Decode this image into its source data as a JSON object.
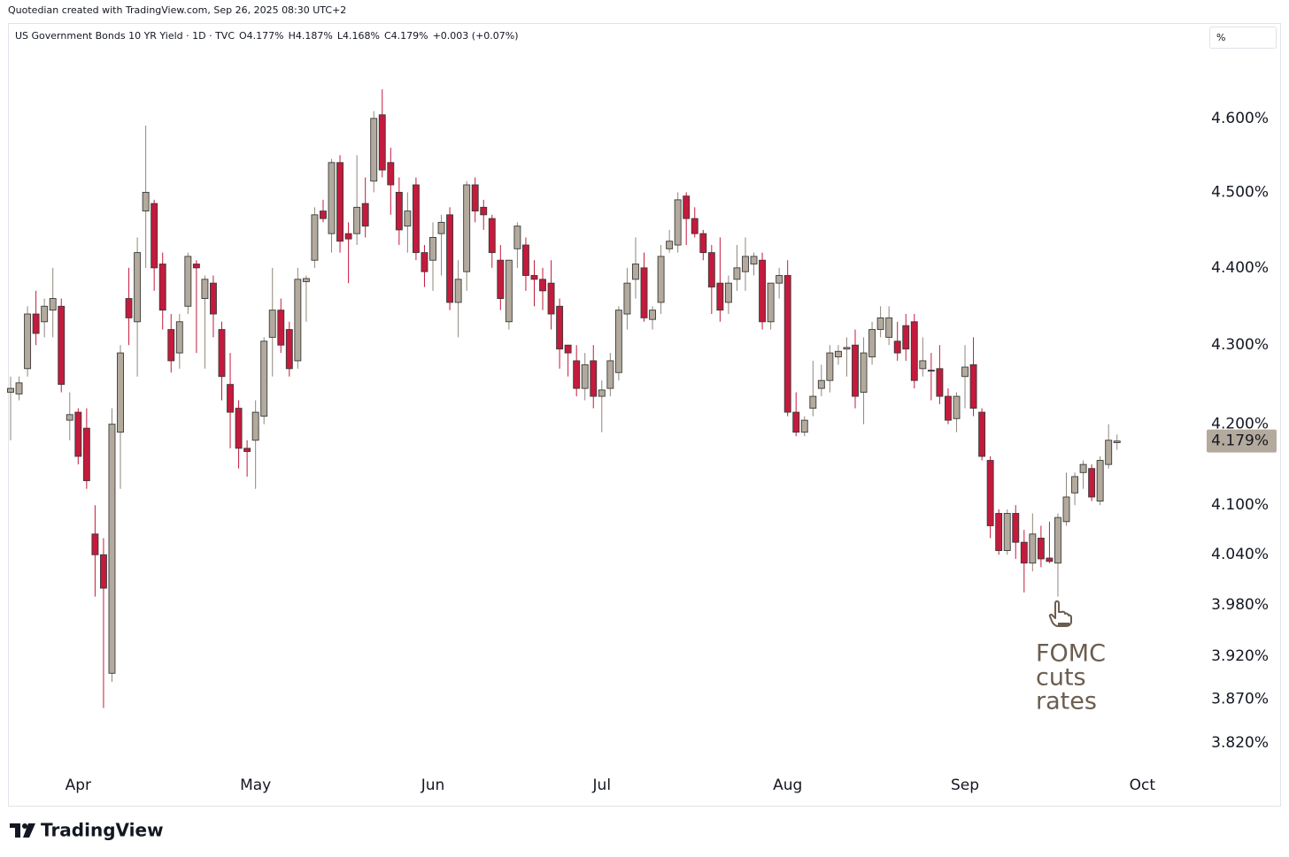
{
  "chart_data": {
    "type": "candlestick",
    "caption": "Quotedian created with TradingView.com, Sep 26, 2025 08:30 UTC+2",
    "title": "US Government Bonds 10 YR Yield · 1D · TVC",
    "legend": [
      {
        "key": "O",
        "text": "4.177%"
      },
      {
        "key": "H",
        "text": "4.187%"
      },
      {
        "key": "L",
        "text": "4.168%"
      },
      {
        "key": "C",
        "text": "4.179%"
      }
    ],
    "change": "+0.003 (+0.07%)",
    "unit": "%",
    "brand": "TradingView",
    "annotation": [
      "FOMC",
      "cuts",
      "rates"
    ],
    "y_scale": "log",
    "grid": false,
    "up_color": "#b3aa9d",
    "down_color": "#c41a3c",
    "border_color": "#3a3a3a",
    "ylim": [
      3.79,
      4.73
    ],
    "yticks": [
      {
        "value": 3.82,
        "label": "3.820%"
      },
      {
        "value": 3.87,
        "label": "3.870%"
      },
      {
        "value": 3.92,
        "label": "3.920%"
      },
      {
        "value": 3.98,
        "label": "3.980%"
      },
      {
        "value": 4.04,
        "label": "4.040%"
      },
      {
        "value": 4.1,
        "label": "4.100%"
      },
      {
        "value": 4.2,
        "label": "4.200%"
      },
      {
        "value": 4.3,
        "label": "4.300%"
      },
      {
        "value": 4.4,
        "label": "4.400%"
      },
      {
        "value": 4.5,
        "label": "4.500%"
      },
      {
        "value": 4.6,
        "label": "4.600%"
      }
    ],
    "last_price": {
      "value": 4.179,
      "label": "4.179%"
    },
    "categories": [
      null,
      null,
      null,
      null,
      null,
      null,
      null,
      null,
      "Apr",
      null,
      null,
      null,
      null,
      null,
      null,
      null,
      null,
      null,
      null,
      null,
      null,
      null,
      null,
      null,
      null,
      null,
      null,
      null,
      null,
      "May",
      null,
      null,
      null,
      null,
      null,
      null,
      null,
      null,
      null,
      null,
      null,
      null,
      null,
      null,
      null,
      null,
      null,
      null,
      null,
      null,
      "Jun",
      null,
      null,
      null,
      null,
      null,
      null,
      null,
      null,
      null,
      null,
      null,
      null,
      null,
      null,
      null,
      null,
      null,
      null,
      null,
      "Jul",
      null,
      null,
      null,
      null,
      null,
      null,
      null,
      null,
      null,
      null,
      null,
      null,
      null,
      null,
      null,
      null,
      null,
      null,
      null,
      null,
      null,
      "Aug",
      null,
      null,
      null,
      null,
      null,
      null,
      null,
      null,
      null,
      null,
      null,
      null,
      null,
      null,
      null,
      null,
      null,
      null,
      null,
      null,
      "Sep",
      null,
      null,
      null,
      null,
      null,
      null,
      null,
      null,
      null,
      null,
      null,
      null,
      null,
      null,
      null,
      null,
      null,
      null,
      null,
      null,
      "Oct"
    ],
    "open": [
      4.24,
      4.238,
      4.27,
      4.34,
      4.33,
      4.345,
      4.35,
      4.205,
      4.215,
      4.195,
      4.065,
      4.04,
      3.9,
      4.19,
      4.36,
      4.33,
      4.475,
      4.485,
      4.405,
      4.32,
      4.29,
      4.35,
      4.405,
      4.36,
      4.38,
      4.32,
      4.25,
      4.22,
      4.17,
      4.18,
      4.21,
      4.31,
      4.345,
      4.32,
      4.28,
      4.382,
      4.41,
      4.475,
      4.445,
      4.54,
      4.445,
      4.445,
      4.485,
      4.515,
      4.605,
      4.54,
      4.5,
      4.455,
      4.51,
      4.42,
      4.41,
      4.445,
      4.47,
      4.355,
      4.395,
      4.51,
      4.48,
      4.465,
      4.41,
      4.33,
      4.425,
      4.43,
      4.39,
      4.385,
      4.38,
      4.35,
      4.3,
      4.28,
      4.245,
      4.28,
      4.235,
      4.245,
      4.265,
      4.34,
      4.385,
      4.4,
      4.333,
      4.355,
      4.425,
      4.43,
      4.495,
      4.465,
      4.445,
      4.42,
      4.38,
      4.355,
      4.385,
      4.395,
      4.405,
      4.41,
      4.33,
      4.38,
      4.39,
      4.215,
      4.19,
      4.22,
      4.245,
      4.255,
      4.285,
      4.295,
      4.3,
      4.24,
      4.285,
      4.32,
      4.31,
      4.305,
      4.325,
      4.33,
      4.27,
      4.268,
      4.27,
      4.235,
      4.207,
      4.26,
      4.275,
      4.215,
      4.155,
      4.09,
      4.045,
      4.09,
      4.055,
      4.03,
      4.06,
      4.036,
      4.03,
      4.08,
      4.115,
      4.14,
      4.145,
      4.105,
      4.15,
      4.177,
      null,
      null,
      null
    ],
    "high": [
      4.26,
      4.26,
      4.35,
      4.37,
      4.36,
      4.4,
      4.36,
      4.24,
      4.22,
      4.22,
      4.1,
      4.06,
      4.22,
      4.3,
      4.4,
      4.44,
      4.59,
      4.49,
      4.42,
      4.34,
      4.34,
      4.42,
      4.41,
      4.39,
      4.39,
      4.33,
      4.29,
      4.23,
      4.18,
      4.23,
      4.31,
      4.4,
      4.36,
      4.33,
      4.4,
      4.39,
      4.48,
      4.49,
      4.545,
      4.55,
      4.46,
      4.55,
      4.52,
      4.61,
      4.64,
      4.56,
      4.52,
      4.5,
      4.52,
      4.43,
      4.46,
      4.47,
      4.48,
      4.41,
      4.515,
      4.52,
      4.49,
      4.47,
      4.43,
      4.41,
      4.46,
      4.44,
      4.41,
      4.4,
      4.41,
      4.36,
      4.3,
      4.3,
      4.29,
      4.3,
      4.255,
      4.29,
      4.35,
      4.4,
      4.44,
      4.42,
      4.35,
      4.43,
      4.45,
      4.5,
      4.5,
      4.48,
      4.45,
      4.43,
      4.44,
      4.39,
      4.43,
      4.44,
      4.42,
      4.42,
      4.38,
      4.4,
      4.41,
      4.24,
      4.21,
      4.28,
      4.275,
      4.3,
      4.3,
      4.31,
      4.32,
      4.31,
      4.33,
      4.35,
      4.35,
      4.33,
      4.34,
      4.34,
      4.31,
      4.29,
      4.3,
      4.245,
      4.24,
      4.3,
      4.31,
      4.22,
      4.16,
      4.095,
      4.095,
      4.1,
      4.07,
      4.09,
      4.075,
      4.08,
      4.09,
      4.14,
      4.14,
      4.155,
      4.15,
      4.16,
      4.2,
      4.187,
      null,
      null,
      null
    ],
    "low": [
      4.18,
      4.23,
      4.26,
      4.3,
      4.31,
      4.31,
      4.24,
      4.18,
      4.15,
      4.12,
      3.99,
      3.86,
      3.89,
      4.12,
      4.3,
      4.26,
      4.4,
      4.37,
      4.32,
      4.265,
      4.27,
      4.34,
      4.29,
      4.27,
      4.31,
      4.23,
      4.17,
      4.145,
      4.135,
      4.12,
      4.2,
      4.26,
      4.29,
      4.26,
      4.27,
      4.33,
      4.4,
      4.46,
      4.42,
      4.42,
      4.38,
      4.43,
      4.44,
      4.5,
      4.52,
      4.47,
      4.43,
      4.42,
      4.41,
      4.375,
      4.37,
      4.39,
      4.345,
      4.31,
      4.37,
      4.46,
      4.45,
      4.4,
      4.345,
      4.32,
      4.4,
      4.37,
      4.35,
      4.345,
      4.32,
      4.27,
      4.26,
      4.235,
      4.23,
      4.22,
      4.19,
      4.235,
      4.255,
      4.32,
      4.36,
      4.33,
      4.32,
      4.34,
      4.42,
      4.42,
      4.43,
      4.44,
      4.41,
      4.34,
      4.33,
      4.34,
      4.37,
      4.37,
      4.39,
      4.32,
      4.32,
      4.36,
      4.21,
      4.185,
      4.185,
      4.21,
      4.235,
      4.24,
      4.275,
      4.26,
      4.22,
      4.2,
      4.275,
      4.31,
      4.3,
      4.28,
      4.28,
      4.245,
      4.26,
      4.23,
      4.225,
      4.2,
      4.19,
      4.22,
      4.21,
      4.155,
      4.06,
      4.04,
      4.04,
      4.035,
      3.995,
      4.02,
      4.025,
      4.03,
      3.99,
      4.075,
      4.1,
      4.12,
      4.105,
      4.1,
      4.145,
      4.168,
      null,
      null,
      null
    ],
    "close": [
      4.245,
      4.252,
      4.34,
      4.315,
      4.35,
      4.36,
      4.25,
      4.212,
      4.16,
      4.13,
      4.04,
      4.0,
      4.2,
      4.29,
      4.335,
      4.42,
      4.5,
      4.4,
      4.345,
      4.28,
      4.33,
      4.415,
      4.4,
      4.385,
      4.34,
      4.26,
      4.215,
      4.17,
      4.166,
      4.215,
      4.305,
      4.345,
      4.3,
      4.27,
      4.385,
      4.386,
      4.47,
      4.465,
      4.54,
      4.435,
      4.438,
      4.48,
      4.455,
      4.6,
      4.53,
      4.51,
      4.45,
      4.475,
      4.42,
      4.395,
      4.44,
      4.46,
      4.355,
      4.385,
      4.51,
      4.475,
      4.47,
      4.42,
      4.36,
      4.41,
      4.455,
      4.39,
      4.385,
      4.37,
      4.34,
      4.295,
      4.29,
      4.245,
      4.275,
      4.235,
      4.243,
      4.28,
      4.345,
      4.38,
      4.405,
      4.335,
      4.345,
      4.415,
      4.435,
      4.49,
      4.465,
      4.445,
      4.42,
      4.375,
      4.345,
      4.38,
      4.4,
      4.415,
      4.415,
      4.33,
      4.38,
      4.39,
      4.215,
      4.19,
      4.205,
      4.235,
      4.255,
      4.29,
      4.292,
      4.297,
      4.235,
      4.29,
      4.32,
      4.335,
      4.335,
      4.29,
      4.295,
      4.255,
      4.28,
      4.267,
      4.235,
      4.205,
      4.235,
      4.272,
      4.22,
      4.16,
      4.075,
      4.045,
      4.09,
      4.055,
      4.03,
      4.065,
      4.035,
      4.032,
      4.085,
      4.11,
      4.135,
      4.15,
      4.11,
      4.155,
      4.18,
      4.179,
      null,
      null,
      null
    ]
  }
}
